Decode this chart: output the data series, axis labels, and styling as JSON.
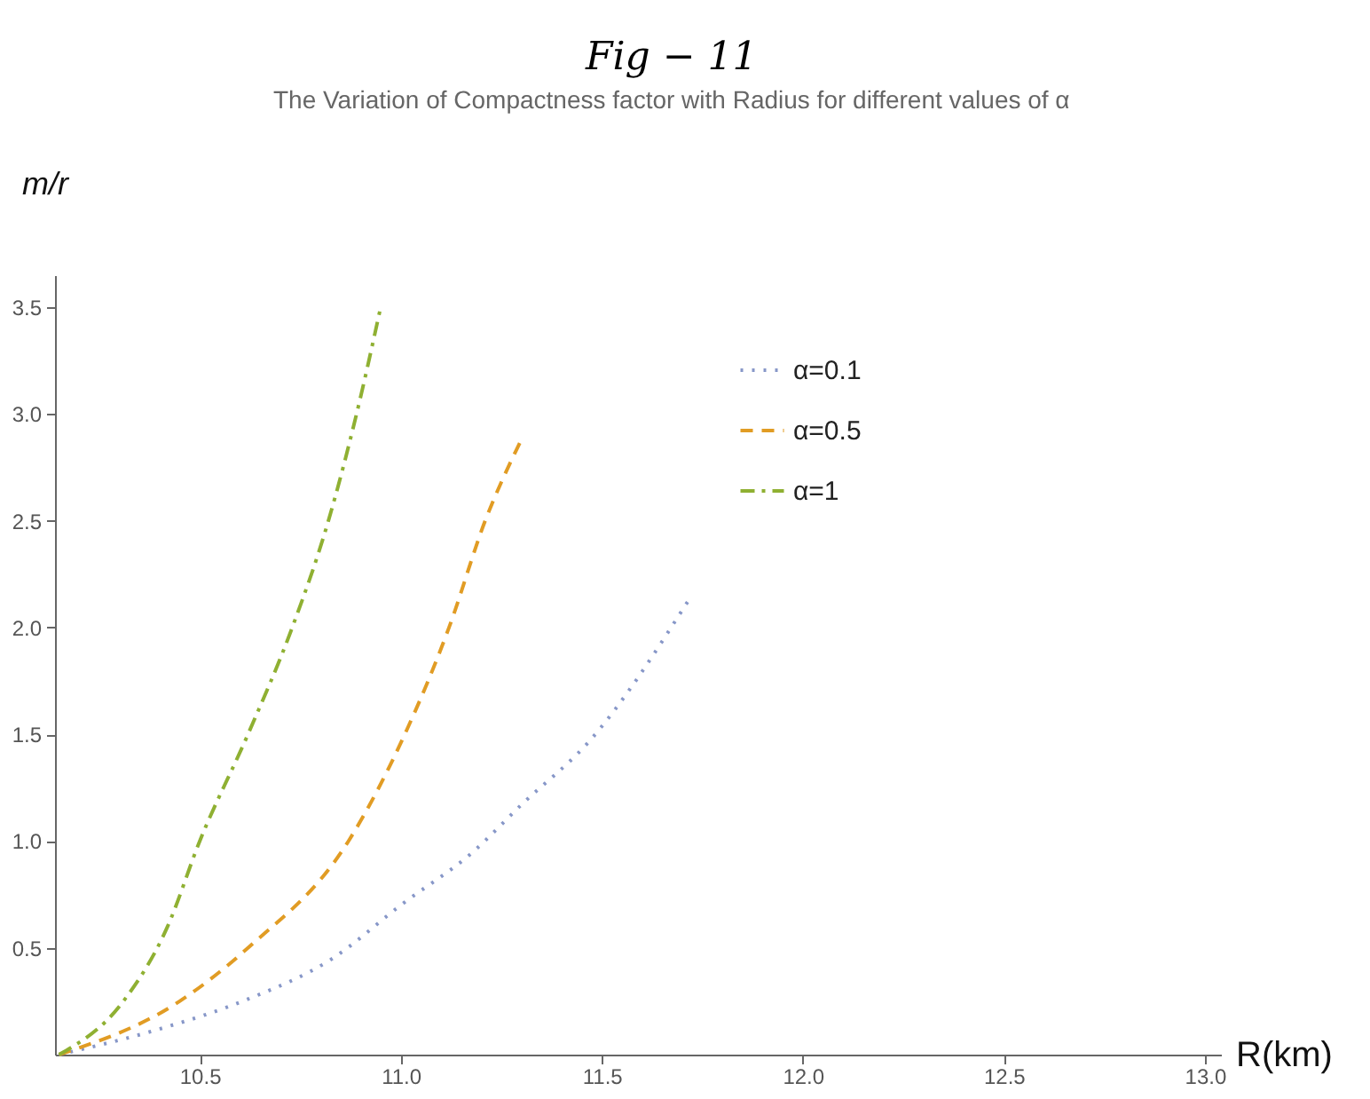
{
  "chart_data": {
    "type": "line",
    "title": "Fig − 11",
    "subtitle": "The Variation of Compactness factor with Radius for different values of α",
    "xlabel": "R(km)",
    "ylabel": "m/r",
    "xlim": [
      10.14,
      13.04
    ],
    "ylim": [
      0,
      3.65
    ],
    "xticks": [
      {
        "value": 10.5,
        "label": "10.5"
      },
      {
        "value": 11,
        "label": "11.0"
      },
      {
        "value": 11.5,
        "label": "11.5"
      },
      {
        "value": 12,
        "label": "12.0"
      },
      {
        "value": 12.5,
        "label": "12.5"
      },
      {
        "value": 13,
        "label": "13.0"
      }
    ],
    "yticks": [
      {
        "value": 0.5,
        "label": "0.5"
      },
      {
        "value": 1,
        "label": "1.0"
      },
      {
        "value": 1.5,
        "label": "1.5"
      },
      {
        "value": 2,
        "label": "2.0"
      },
      {
        "value": 2.5,
        "label": "2.5"
      },
      {
        "value": 3,
        "label": "3.0"
      },
      {
        "value": 3.5,
        "label": "3.5"
      }
    ],
    "grid": false,
    "legend": "top right",
    "series": [
      {
        "name": "α=0.1",
        "color": "#8797c8",
        "line_style": "dotted",
        "x": [
          10.15,
          10.4,
          10.62,
          10.83,
          11.0,
          11.18,
          11.3,
          11.47,
          11.72
        ],
        "values": [
          0,
          0.12,
          0.26,
          0.45,
          0.7,
          0.95,
          1.17,
          1.47,
          2.14
        ]
      },
      {
        "name": "α=0.5",
        "color": "#e19c24",
        "line_style": "dashed",
        "x": [
          10.15,
          10.45,
          10.62,
          10.87,
          11.01,
          11.12,
          11.21,
          11.3
        ],
        "values": [
          0,
          0.25,
          0.5,
          1.0,
          1.5,
          2.0,
          2.5,
          2.88
        ]
      },
      {
        "name": "α=1",
        "color": "#8fb032",
        "line_style": "dashdot",
        "x": [
          10.15,
          10.31,
          10.42,
          10.5,
          10.62,
          10.73,
          10.82,
          10.89,
          10.95
        ],
        "values": [
          0,
          0.25,
          0.6,
          1.0,
          1.5,
          2.0,
          2.5,
          3.0,
          3.5
        ]
      }
    ]
  }
}
